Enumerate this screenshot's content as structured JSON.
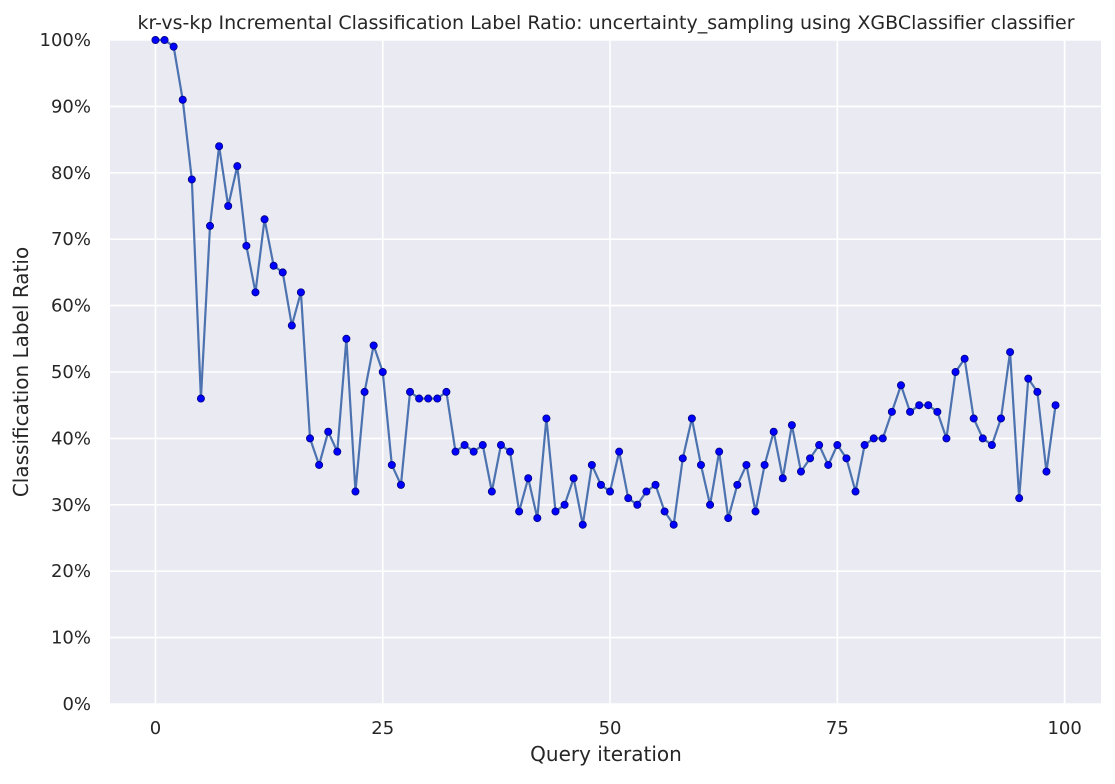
{
  "chart_data": {
    "type": "line",
    "title": "kr-vs-kp Incremental Classification Label Ratio: uncertainty_sampling using XGBClassifier classifier",
    "xlabel": "Query iteration",
    "ylabel": "Classification Label Ratio",
    "xlim": [
      -5,
      104
    ],
    "ylim": [
      0,
      1
    ],
    "xticks": [
      0,
      25,
      50,
      75,
      100
    ],
    "xtick_labels": [
      "0",
      "25",
      "50",
      "75",
      "100"
    ],
    "yticks": [
      0,
      0.1,
      0.2,
      0.3,
      0.4,
      0.5,
      0.6,
      0.7,
      0.8,
      0.9,
      1.0
    ],
    "ytick_labels": [
      "0%",
      "10%",
      "20%",
      "30%",
      "40%",
      "50%",
      "60%",
      "70%",
      "80%",
      "90%",
      "100%"
    ],
    "grid": true,
    "series": [
      {
        "x": [
          0,
          1,
          2,
          3,
          4,
          5,
          6,
          7,
          8,
          9,
          10,
          11,
          12,
          13,
          14,
          15,
          16,
          17,
          18,
          19,
          20,
          21,
          22,
          23,
          24,
          25,
          26,
          27,
          28,
          29,
          30,
          31,
          32,
          33,
          34,
          35,
          36,
          37,
          38,
          39,
          40,
          41,
          42,
          43,
          44,
          45,
          46,
          47,
          48,
          49,
          50,
          51,
          52,
          53,
          54,
          55,
          56,
          57,
          58,
          59,
          60,
          61,
          62,
          63,
          64,
          65,
          66,
          67,
          68,
          69,
          70,
          71,
          72,
          73,
          74,
          75,
          76,
          77,
          78,
          79,
          80,
          81,
          82,
          83,
          84,
          85,
          86,
          87,
          88,
          89,
          90,
          91,
          92,
          93,
          94,
          95,
          96,
          97,
          98,
          99
        ],
        "values": [
          1.0,
          1.0,
          0.99,
          0.91,
          0.79,
          0.46,
          0.72,
          0.84,
          0.75,
          0.81,
          0.69,
          0.62,
          0.73,
          0.66,
          0.65,
          0.57,
          0.62,
          0.4,
          0.36,
          0.41,
          0.38,
          0.55,
          0.32,
          0.47,
          0.54,
          0.5,
          0.36,
          0.33,
          0.47,
          0.46,
          0.46,
          0.46,
          0.47,
          0.38,
          0.39,
          0.38,
          0.39,
          0.32,
          0.39,
          0.38,
          0.29,
          0.34,
          0.28,
          0.43,
          0.29,
          0.3,
          0.34,
          0.27,
          0.36,
          0.33,
          0.32,
          0.38,
          0.31,
          0.3,
          0.32,
          0.33,
          0.29,
          0.27,
          0.37,
          0.43,
          0.36,
          0.3,
          0.38,
          0.28,
          0.33,
          0.36,
          0.29,
          0.36,
          0.41,
          0.34,
          0.42,
          0.35,
          0.37,
          0.39,
          0.36,
          0.39,
          0.37,
          0.32,
          0.39,
          0.4,
          0.4,
          0.44,
          0.48,
          0.44,
          0.45,
          0.45,
          0.44,
          0.4,
          0.5,
          0.52,
          0.43,
          0.4,
          0.39,
          0.43,
          0.53,
          0.31,
          0.49,
          0.47,
          0.35,
          0.45
        ]
      }
    ]
  },
  "colors": {
    "plot_background": "#eaeaf2",
    "grid": "#ffffff",
    "line": "#4c72b0",
    "marker": "#0000ff",
    "marker_edge": "#000080"
  }
}
